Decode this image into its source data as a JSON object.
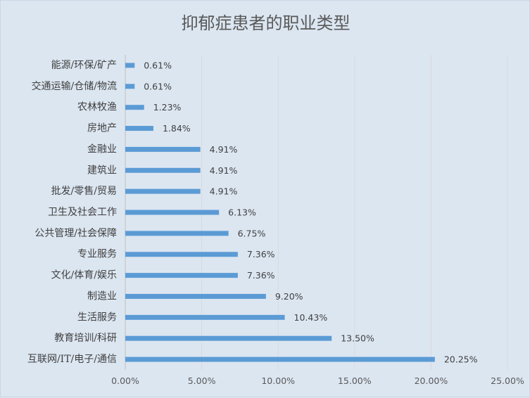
{
  "chart_data": {
    "type": "bar",
    "orientation": "horizontal",
    "title": "抑郁症患者的职业类型",
    "categories": [
      "能源/环保/矿产",
      "交通运输/仓储/物流",
      "农林牧渔",
      "房地产",
      "金融业",
      "建筑业",
      "批发/零售/贸易",
      "卫生及社会工作",
      "公共管理/社会保障",
      "专业服务",
      "文化/体育/娱乐",
      "制造业",
      "生活服务",
      "教育培训/科研",
      "互联网/IT/电子/通信"
    ],
    "values": [
      0.61,
      0.61,
      1.23,
      1.84,
      4.91,
      4.91,
      4.91,
      6.13,
      6.75,
      7.36,
      7.36,
      9.2,
      10.43,
      13.5,
      20.25
    ],
    "value_labels": [
      "0.61%",
      "0.61%",
      "1.23%",
      "1.84%",
      "4.91%",
      "4.91%",
      "4.91%",
      "6.13%",
      "6.75%",
      "7.36%",
      "7.36%",
      "9.20%",
      "10.43%",
      "13.50%",
      "20.25%"
    ],
    "x_ticks": [
      0,
      5,
      10,
      15,
      20,
      25
    ],
    "x_tick_labels": [
      "0.00%",
      "5.00%",
      "10.00%",
      "15.00%",
      "20.00%",
      "25.00%"
    ],
    "xlim": [
      0,
      25
    ],
    "xlabel": "",
    "ylabel": "",
    "grid": "vertical",
    "legend": "none",
    "colors": {
      "bar": "#5b9bd5",
      "grid": "#d9d9d9",
      "background": "#dce6f1",
      "text": "#404040"
    }
  }
}
